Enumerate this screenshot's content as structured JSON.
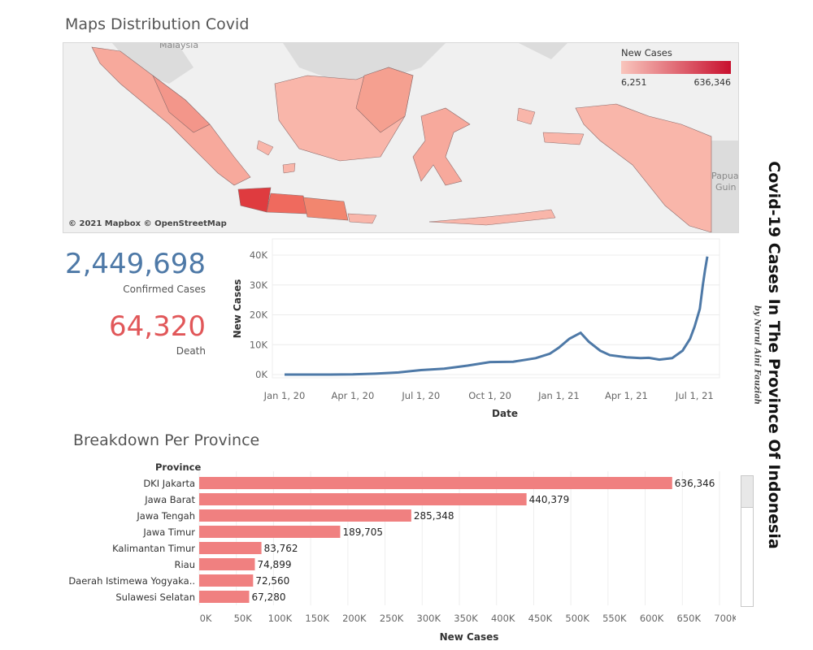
{
  "map_section": {
    "title": "Maps Distribution Covid",
    "credit": "© 2021 Mapbox © OpenStreetMap",
    "legend": {
      "title": "New Cases",
      "min": "6,251",
      "max": "636,346",
      "color_low": "#f9c6bd",
      "color_high": "#c8102e"
    },
    "place_labels": {
      "malaysia": "Malaysia",
      "papua": "Papua",
      "papua2": "Guin"
    }
  },
  "kpis": {
    "confirmed": {
      "value": "2,449,698",
      "label": "Confirmed Cases",
      "color": "#4e79a7"
    },
    "death": {
      "value": "64,320",
      "label": "Death",
      "color": "#e15759"
    }
  },
  "side_title": {
    "title": "Covid-19 Cases In The Province Of Indonesia",
    "subtitle": "by Nurul Aini Fauziah"
  },
  "line_chart": {
    "chart_data": {
      "type": "line",
      "xlabel": "Date",
      "ylabel": "New Cases",
      "x_ticks": [
        "Jan 1, 20",
        "Apr 1, 20",
        "Jul 1, 20",
        "Oct 1, 20",
        "Jan 1, 21",
        "Apr 1, 21",
        "Jul 1, 21"
      ],
      "y_ticks": [
        "0K",
        "10K",
        "20K",
        "30K",
        "40K"
      ],
      "ylim": [
        0,
        40000
      ],
      "color": "#4e79a7",
      "x": [
        "2020-01-01",
        "2020-03-01",
        "2020-04-01",
        "2020-05-01",
        "2020-06-01",
        "2020-07-01",
        "2020-08-01",
        "2020-09-01",
        "2020-10-01",
        "2020-11-01",
        "2020-12-01",
        "2020-12-20",
        "2021-01-01",
        "2021-01-15",
        "2021-01-30",
        "2021-02-10",
        "2021-02-25",
        "2021-03-10",
        "2021-04-01",
        "2021-04-20",
        "2021-05-01",
        "2021-05-15",
        "2021-06-01",
        "2021-06-15",
        "2021-06-25",
        "2021-07-01",
        "2021-07-08",
        "2021-07-12",
        "2021-07-15",
        "2021-07-18"
      ],
      "values": [
        0,
        0,
        50,
        300,
        700,
        1500,
        2000,
        3000,
        4200,
        4300,
        5500,
        7000,
        9000,
        12000,
        14000,
        11000,
        8000,
        6500,
        5800,
        5500,
        5600,
        5000,
        5500,
        8000,
        12000,
        16000,
        22000,
        30000,
        35000,
        39500
      ]
    }
  },
  "bar_section": {
    "title": "Breakdown Per Province",
    "column_header": "Province",
    "chart_data": {
      "type": "bar",
      "orientation": "horizontal",
      "categories": [
        "DKI Jakarta",
        "Jawa Barat",
        "Jawa Tengah",
        "Jawa Timur",
        "Kalimantan Timur",
        "Riau",
        "Daerah Istimewa Yogyaka..",
        "Sulawesi Selatan"
      ],
      "values": [
        636346,
        440379,
        285348,
        189705,
        83762,
        74899,
        72560,
        67280
      ],
      "value_labels": [
        "636,346",
        "440,379",
        "285,348",
        "189,705",
        "83,762",
        "74,899",
        "72,560",
        "67,280"
      ],
      "xlabel": "New Cases",
      "x_ticks": [
        "0K",
        "50K",
        "100K",
        "150K",
        "200K",
        "250K",
        "300K",
        "350K",
        "400K",
        "450K",
        "500K",
        "550K",
        "600K",
        "650K",
        "700K"
      ],
      "xlim": [
        0,
        700000
      ],
      "color": "#f08080"
    }
  }
}
